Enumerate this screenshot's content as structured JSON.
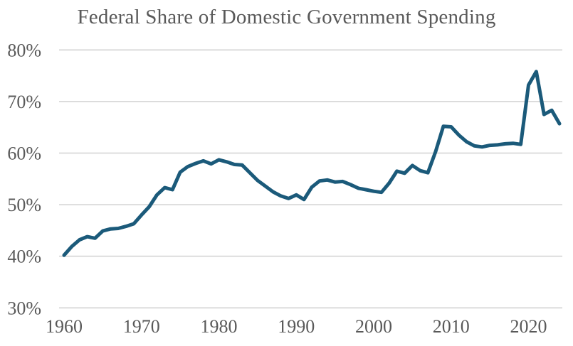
{
  "page_title": "Federal Share of Domestic Government Spending",
  "chart_data": {
    "type": "line",
    "title": "Federal Share of Domestic Government Spending",
    "xlabel": "",
    "ylabel": "",
    "x": [
      1960,
      1961,
      1962,
      1963,
      1964,
      1965,
      1966,
      1967,
      1968,
      1969,
      1970,
      1971,
      1972,
      1973,
      1974,
      1975,
      1976,
      1977,
      1978,
      1979,
      1980,
      1981,
      1982,
      1983,
      1984,
      1985,
      1986,
      1987,
      1988,
      1989,
      1990,
      1991,
      1992,
      1993,
      1994,
      1995,
      1996,
      1997,
      1998,
      1999,
      2000,
      2001,
      2002,
      2003,
      2004,
      2005,
      2006,
      2007,
      2008,
      2009,
      2010,
      2011,
      2012,
      2013,
      2014,
      2015,
      2016,
      2017,
      2018,
      2019,
      2020,
      2021,
      2022,
      2023,
      2024
    ],
    "values": [
      40.2,
      41.9,
      43.2,
      43.8,
      43.5,
      44.9,
      45.3,
      45.4,
      45.8,
      46.3,
      48.0,
      49.6,
      51.9,
      53.3,
      52.9,
      56.3,
      57.4,
      58.0,
      58.5,
      57.9,
      58.7,
      58.3,
      57.8,
      57.7,
      56.2,
      54.7,
      53.6,
      52.5,
      51.7,
      51.2,
      51.9,
      51.0,
      53.4,
      54.6,
      54.8,
      54.4,
      54.5,
      53.9,
      53.2,
      52.9,
      52.6,
      52.4,
      54.2,
      56.5,
      56.1,
      57.6,
      56.6,
      56.2,
      60.3,
      65.2,
      65.1,
      63.5,
      62.2,
      61.4,
      61.2,
      61.5,
      61.6,
      61.8,
      61.9,
      61.7,
      73.2,
      75.8,
      67.5,
      68.3,
      65.7
    ],
    "unit": "%",
    "xlim": [
      1960,
      2024
    ],
    "ylim": [
      30,
      80
    ],
    "y_ticks": [
      30,
      40,
      50,
      60,
      70,
      80
    ],
    "y_tick_labels": [
      "30%",
      "40%",
      "50%",
      "60%",
      "70%",
      "80%"
    ],
    "x_ticks": [
      1960,
      1970,
      1980,
      1990,
      2000,
      2010,
      2020
    ],
    "x_tick_labels": [
      "1960",
      "1970",
      "1980",
      "1990",
      "2000",
      "2010",
      "2020"
    ],
    "grid": "horizontal",
    "legend": "none",
    "colors": {
      "line": "#1B5A7A",
      "gridline": "#D9D9D9",
      "tick_text": "#595959",
      "title_text": "#595959",
      "background": "#FFFFFF"
    }
  }
}
